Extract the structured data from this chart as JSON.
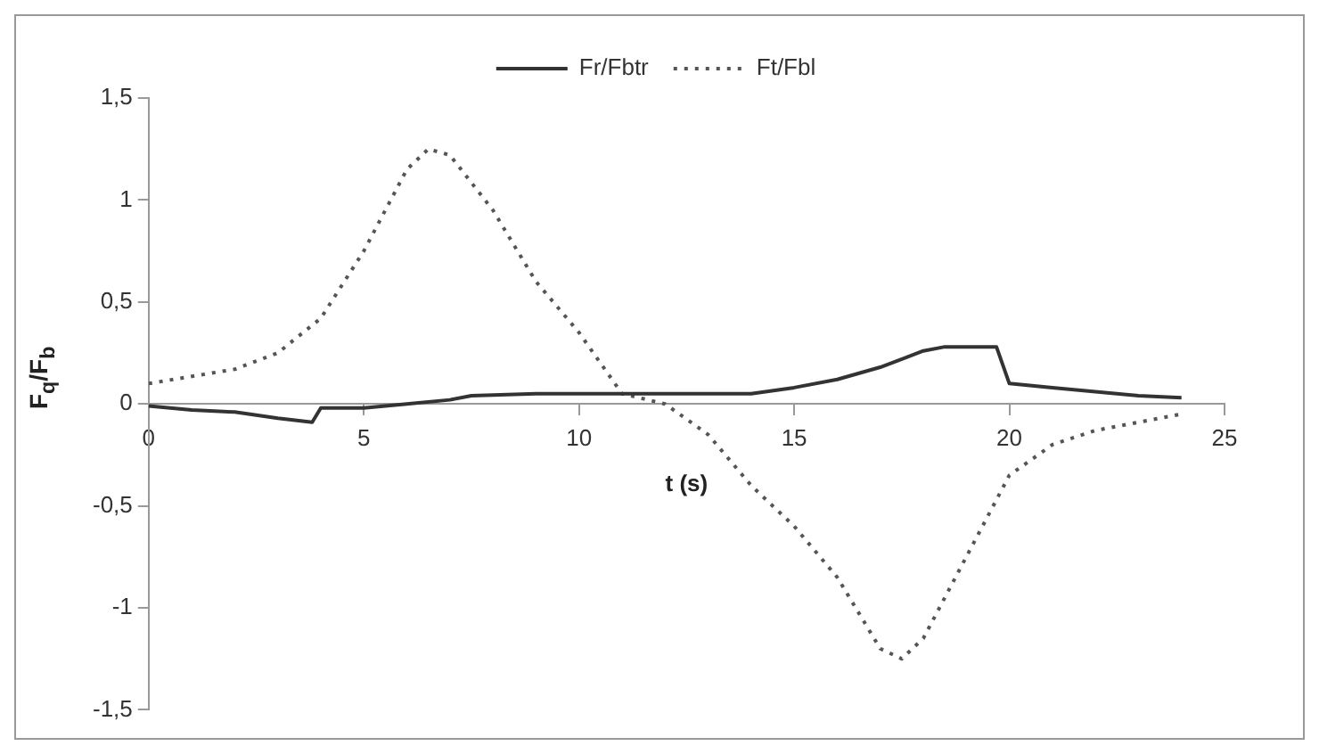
{
  "chart_data": {
    "type": "line",
    "xlabel": "t (s)",
    "ylabel": "F$_{q}$/F$_{b}$",
    "legend": "top",
    "xlim": [
      0,
      25
    ],
    "xticks": [
      0,
      5,
      10,
      15,
      20,
      25
    ],
    "ylim": [
      -1.5,
      1.5
    ],
    "yticks": [
      {
        "value": -1.5,
        "label": "-1,5"
      },
      -1,
      {
        "value": -0.5,
        "label": "-0,5"
      },
      0,
      {
        "value": 0.5,
        "label": "0,5"
      },
      1,
      {
        "value": 1.5,
        "label": "1,5"
      }
    ],
    "grid": false,
    "marker": "none",
    "series": [
      {
        "name": "Fr/Fbtr",
        "color": "#333333",
        "line_style": "solid",
        "x": [
          0,
          1,
          2,
          3,
          3.8,
          4,
          5,
          6,
          7,
          7.5,
          9,
          10,
          11,
          14,
          15,
          16,
          17,
          18,
          18.5,
          19.7,
          20,
          21,
          22,
          23,
          24
        ],
        "values": [
          -0.01,
          -0.03,
          -0.04,
          -0.07,
          -0.09,
          -0.02,
          -0.02,
          0,
          0.02,
          0.04,
          0.05,
          0.05,
          0.05,
          0.05,
          0.08,
          0.12,
          0.18,
          0.26,
          0.28,
          0.28,
          0.1,
          0.08,
          0.06,
          0.04,
          0.03
        ]
      },
      {
        "name": "Ft/Fbl",
        "color": "#555555",
        "line_style": "dotted",
        "x": [
          0,
          2,
          3,
          4,
          5,
          5.5,
          6,
          6.5,
          7,
          8,
          9,
          10,
          11,
          12,
          13,
          14,
          15,
          16,
          17,
          17.5,
          18,
          19,
          19.5,
          20,
          21,
          22,
          23,
          24
        ],
        "values": [
          0.1,
          0.17,
          0.25,
          0.42,
          0.75,
          0.95,
          1.15,
          1.25,
          1.22,
          0.95,
          0.6,
          0.35,
          0.05,
          0,
          -0.15,
          -0.4,
          -0.6,
          -0.85,
          -1.2,
          -1.25,
          -1.15,
          -0.75,
          -0.55,
          -0.35,
          -0.2,
          -0.13,
          -0.09,
          -0.05
        ]
      }
    ]
  }
}
